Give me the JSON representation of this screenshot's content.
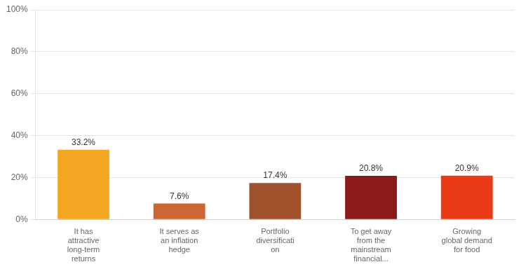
{
  "chart_data": {
    "type": "bar",
    "categories": [
      "It has\nattractive\nlong-term\nreturns",
      "It serves as\nan inflation\nhedge",
      "Portfolio\ndiversificati\non",
      "To get away\nfrom the\nmainstream\nfinancial...",
      "Growing\nglobal demand\nfor food"
    ],
    "values": [
      33.2,
      7.6,
      17.4,
      20.8,
      20.9
    ],
    "value_labels": [
      "33.2%",
      "7.6%",
      "17.4%",
      "20.8%",
      "20.9%"
    ],
    "data_labels": true,
    "colors": [
      "#F5A623",
      "#CC6633",
      "#A0522D",
      "#8B1A1A",
      "#E83A14"
    ],
    "ylim": [
      0,
      100
    ],
    "yticks": [
      {
        "value": 0,
        "label": "0%"
      },
      {
        "value": 20,
        "label": "20%"
      },
      {
        "value": 40,
        "label": "40%"
      },
      {
        "value": 60,
        "label": "60%"
      },
      {
        "value": 80,
        "label": "80%"
      },
      {
        "value": 100,
        "label": "100%"
      }
    ],
    "grid": true
  }
}
